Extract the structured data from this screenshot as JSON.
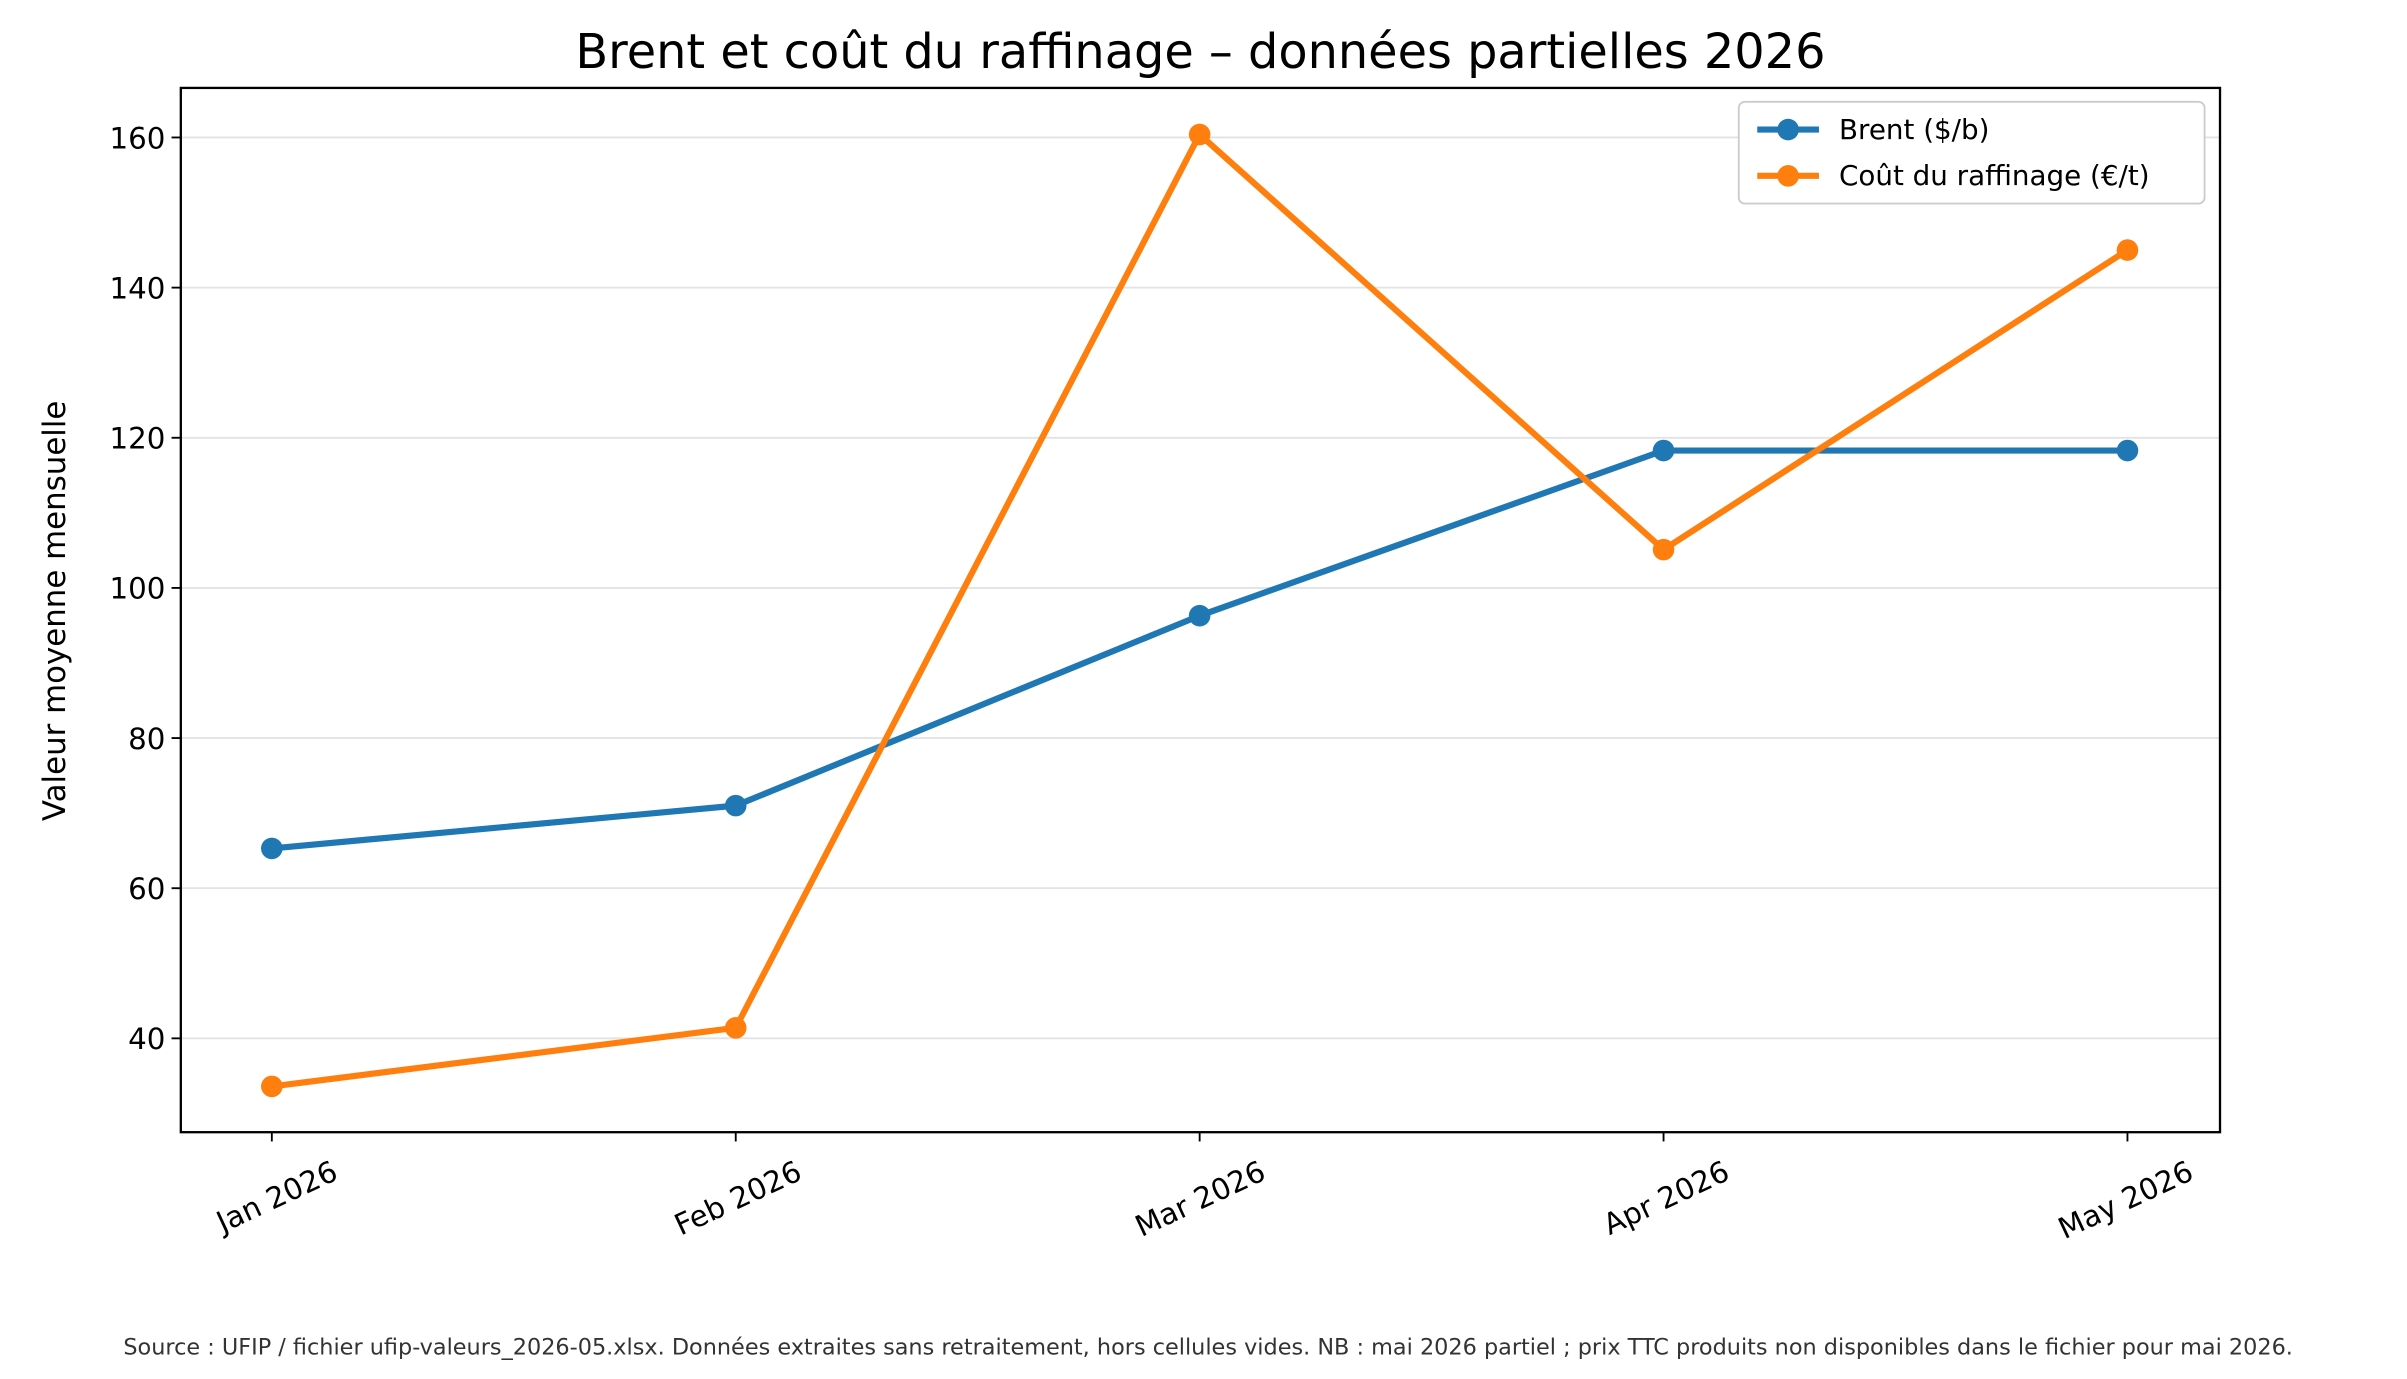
{
  "chart_data": {
    "type": "line",
    "title": "Brent et coût du raffinage – données partielles 2026",
    "y_label": "Valeur moyenne mensuelle",
    "categories": [
      "Jan 2026",
      "Feb 2026",
      "Mar 2026",
      "Apr 2026",
      "May 2026"
    ],
    "series": [
      {
        "name": "Brent ($/b)",
        "color": "#1f77b4",
        "values": [
          65.3,
          71.0,
          96.3,
          118.3,
          118.3
        ]
      },
      {
        "name": "Coût du raffinage (€/t)",
        "color": "#ff7f0e",
        "values": [
          33.6,
          41.4,
          160.4,
          105.1,
          145.0
        ]
      }
    ],
    "ylim": [
      27.5,
      166.6
    ],
    "yticks": [
      40,
      60,
      80,
      100,
      120,
      140,
      160
    ],
    "grid": true,
    "legend": "upper right",
    "footnote": "Source : UFIP / fichier ufip-valeurs_2026-05.xlsx. Données extraites sans retraitement, hors cellules vides. NB : mai 2026 partiel ; prix TTC produits non disponibles dans le fichier pour mai 2026."
  }
}
